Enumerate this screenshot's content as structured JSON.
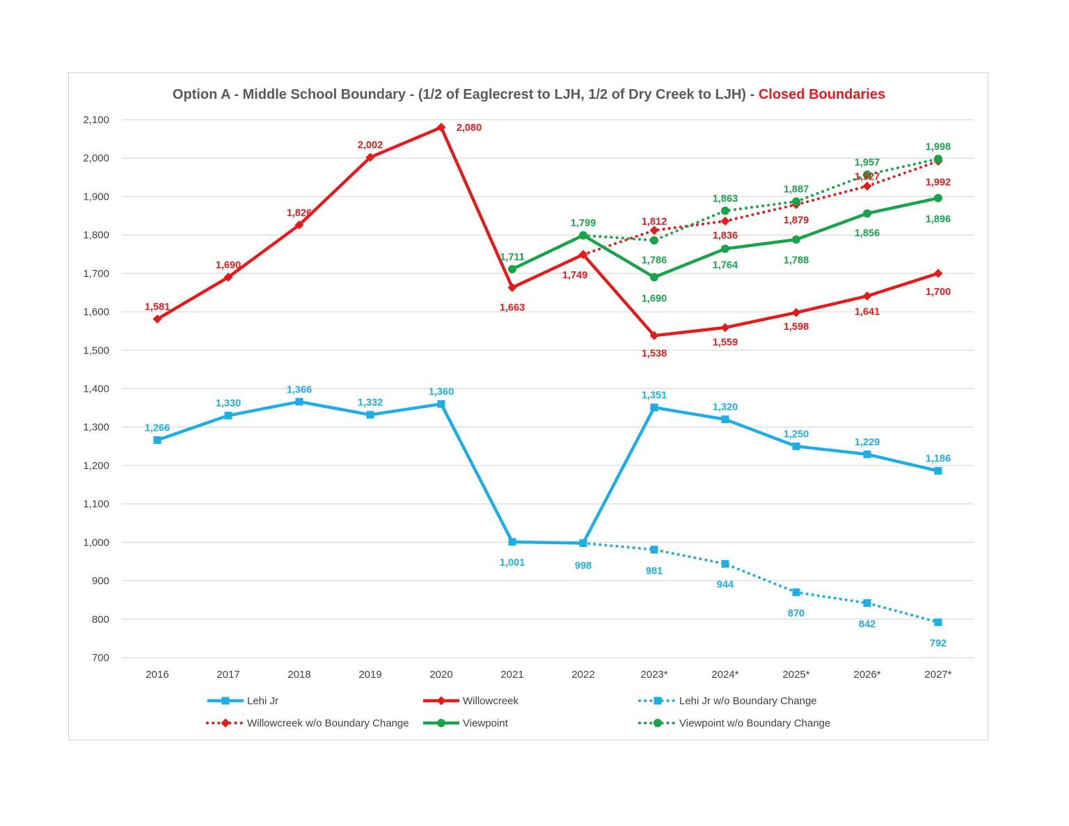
{
  "chart_data": {
    "type": "line",
    "title": "Option A - Middle School Boundary - (1/2 of Eaglecrest to LJH, 1/2 of Dry Creek to LJH) - ",
    "title_highlight": "Closed Boundaries",
    "colors": {
      "title": "#595959",
      "highlight": "#e31b1b",
      "blue": "#1eaee6",
      "red": "#e31b1b",
      "green": "#19a34a",
      "grid": "#d9d9d9",
      "axis_text": "#404040"
    },
    "categories": [
      "2016",
      "2017",
      "2018",
      "2019",
      "2020",
      "2021",
      "2022",
      "2023*",
      "2024*",
      "2025*",
      "2026*",
      "2027*"
    ],
    "ylim": [
      700,
      2100
    ],
    "y_ticks": [
      700,
      800,
      900,
      1000,
      1100,
      1200,
      1300,
      1400,
      1500,
      1600,
      1700,
      1800,
      1900,
      2000,
      2100
    ],
    "y_tick_labels": [
      "700",
      "800",
      "900",
      "1,000",
      "1,100",
      "1,200",
      "1,300",
      "1,400",
      "1,500",
      "1,600",
      "1,700",
      "1,800",
      "1,900",
      "2,000",
      "2,100"
    ],
    "grid": true,
    "legend_position": "bottom",
    "series": [
      {
        "name": "Lehi Jr",
        "color": "#1eaee6",
        "style": "solid",
        "marker": "square",
        "values": [
          1266,
          1330,
          1366,
          1332,
          1360,
          1001,
          998,
          1351,
          1320,
          1250,
          1229,
          1186
        ],
        "labels": [
          "1,266",
          "1,330",
          "1,366",
          "1,332",
          "1,360",
          "1,001",
          "998",
          "1,351",
          "1,320",
          "1,250",
          "1,229",
          "1,186"
        ]
      },
      {
        "name": "Willowcreek",
        "color": "#e31b1b",
        "style": "solid",
        "marker": "diamond",
        "values": [
          1581,
          1690,
          1826,
          2002,
          2080,
          1663,
          1749,
          1538,
          1559,
          1598,
          1641,
          1700
        ],
        "labels": [
          "1,581",
          "1,690",
          "1,826",
          "2,002",
          "2,080",
          "1,663",
          "1,749",
          "1,538",
          "1,559",
          "1,598",
          "1,641",
          "1,700"
        ]
      },
      {
        "name": "Lehi Jr w/o Boundary Change",
        "color": "#1eaee6",
        "style": "dotted",
        "marker": "square",
        "values": [
          null,
          null,
          null,
          null,
          null,
          null,
          998,
          981,
          944,
          870,
          842,
          792
        ],
        "labels": [
          "",
          "",
          "",
          "",
          "",
          "",
          "",
          "981",
          "944",
          "870",
          "842",
          "792"
        ]
      },
      {
        "name": "Willowcreek w/o Boundary Change",
        "color": "#e31b1b",
        "style": "dotted",
        "marker": "diamond",
        "values": [
          null,
          null,
          null,
          null,
          null,
          null,
          1749,
          1812,
          1836,
          1879,
          1927,
          1992
        ],
        "labels": [
          "",
          "",
          "",
          "",
          "",
          "",
          "",
          "1,812",
          "1,836",
          "1,879",
          "1,927",
          "1,992"
        ]
      },
      {
        "name": "Viewpoint",
        "color": "#19a34a",
        "style": "solid",
        "marker": "circle",
        "values": [
          null,
          null,
          null,
          null,
          null,
          1711,
          1799,
          1690,
          1764,
          1788,
          1856,
          1896
        ],
        "labels": [
          "",
          "",
          "",
          "",
          "",
          "1,711",
          "1,799",
          "1,690",
          "1,764",
          "1,788",
          "1,856",
          "1,896"
        ]
      },
      {
        "name": "Viewpoint w/o Boundary Change",
        "color": "#19a34a",
        "style": "dotted",
        "marker": "circle",
        "values": [
          null,
          null,
          null,
          null,
          null,
          null,
          1799,
          1786,
          1863,
          1887,
          1957,
          1998
        ],
        "labels": [
          "",
          "",
          "",
          "",
          "",
          "",
          "",
          "1,786",
          "1,863",
          "1,887",
          "1,957",
          "1,998"
        ]
      }
    ]
  }
}
